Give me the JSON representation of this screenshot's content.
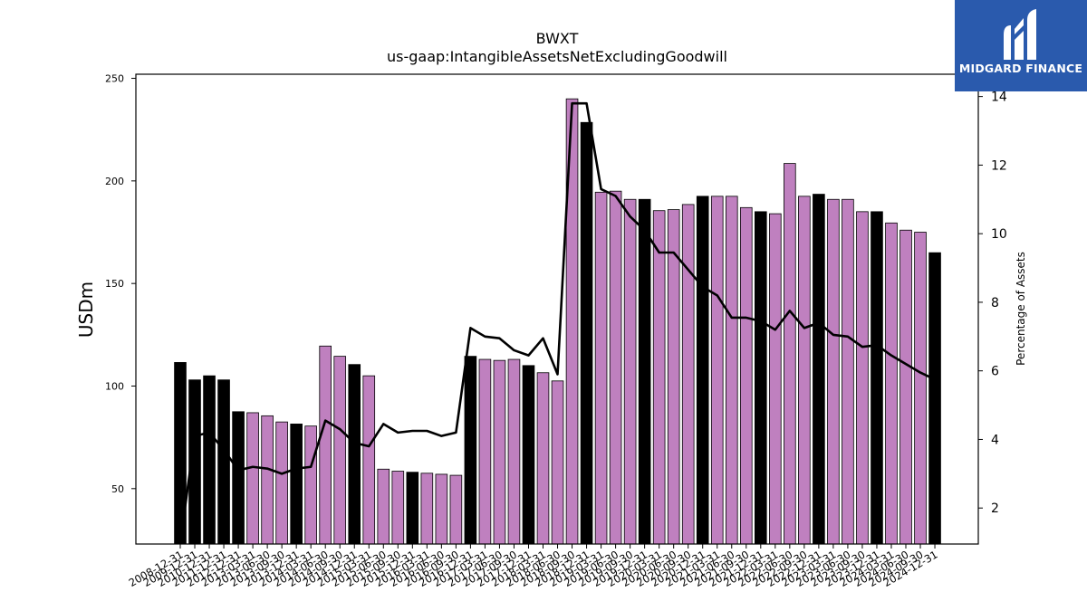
{
  "chart_data": {
    "type": "bar",
    "title": "BWXT",
    "subtitle": "us-gaap:IntangibleAssetsNetExcludingGoodwill",
    "ylabel": "USDm",
    "y2label": "Percentage of Assets",
    "ylim": [
      23,
      252
    ],
    "y2lim": [
      0.95,
      14.65
    ],
    "yticks": [
      50,
      100,
      150,
      200,
      250
    ],
    "y2ticks": [
      2,
      4,
      6,
      8,
      10,
      12,
      14
    ],
    "colors": {
      "annual": "#000000",
      "quarterly": "#bf80bf",
      "line": "#000000"
    },
    "categories": [
      "2008-12-31",
      "2009-12-31",
      "2010-12-31",
      "2011-12-31",
      "2012-12-31",
      "2013-03-31",
      "2013-06-30",
      "2013-09-30",
      "2013-12-31",
      "2014-03-31",
      "2014-06-30",
      "2014-09-30",
      "2014-12-31",
      "2015-03-31",
      "2015-06-30",
      "2015-09-30",
      "2015-12-31",
      "2016-03-31",
      "2016-06-30",
      "2016-09-30",
      "2016-12-31",
      "2017-03-31",
      "2017-06-30",
      "2017-09-30",
      "2017-12-31",
      "2018-03-31",
      "2018-06-30",
      "2018-09-30",
      "2018-12-31",
      "2019-03-31",
      "2019-06-30",
      "2019-09-30",
      "2019-12-31",
      "2020-03-31",
      "2020-06-30",
      "2020-09-30",
      "2020-12-31",
      "2021-03-31",
      "2021-06-30",
      "2021-09-30",
      "2021-12-31",
      "2022-03-31",
      "2022-06-30",
      "2022-09-30",
      "2022-12-31",
      "2023-03-31",
      "2023-06-30",
      "2023-09-30",
      "2023-12-31",
      "2024-03-31",
      "2024-06-30",
      "2024-09-30",
      "2024-12-31"
    ],
    "annual": [
      true,
      true,
      true,
      true,
      true,
      false,
      false,
      false,
      true,
      false,
      false,
      false,
      true,
      false,
      false,
      false,
      true,
      false,
      false,
      false,
      true,
      false,
      false,
      false,
      true,
      false,
      false,
      false,
      true,
      false,
      false,
      false,
      true,
      false,
      false,
      false,
      true,
      false,
      false,
      false,
      true,
      false,
      false,
      false,
      true,
      false,
      false,
      false,
      true,
      false,
      false,
      false,
      true
    ],
    "series": [
      {
        "name": "USDm",
        "type": "bar",
        "values": [
          111.5,
          103,
          105,
          103,
          87.5,
          87,
          85.5,
          82.5,
          81.5,
          80.5,
          119.5,
          114.5,
          110.5,
          105,
          59.5,
          58.5,
          58,
          57.5,
          57,
          56.5,
          114.5,
          113,
          112.5,
          113,
          110,
          106.5,
          102.5,
          240,
          228.5,
          194.5,
          195,
          191,
          191,
          185.5,
          186,
          188.5,
          192.5,
          192.5,
          192.5,
          187,
          185,
          184,
          208.5,
          192.5,
          193.5,
          191,
          191,
          185,
          185,
          179.5,
          176,
          175,
          165
        ]
      },
      {
        "name": "Percentage of Assets",
        "type": "line",
        "values": [
          1.0,
          4.1,
          4.2,
          3.7,
          3.1,
          3.2,
          3.15,
          3.0,
          3.15,
          3.2,
          4.55,
          4.3,
          3.9,
          3.8,
          4.45,
          4.2,
          4.25,
          4.25,
          4.1,
          4.2,
          7.25,
          7.0,
          6.95,
          6.6,
          6.45,
          6.95,
          5.9,
          13.8,
          13.8,
          11.3,
          11.1,
          10.5,
          10.1,
          9.45,
          9.45,
          8.95,
          8.45,
          8.2,
          7.55,
          7.55,
          7.45,
          7.2,
          7.75,
          7.25,
          7.4,
          7.05,
          7.0,
          6.7,
          6.75,
          6.45,
          6.2,
          5.95,
          5.75
        ]
      }
    ]
  },
  "logo": {
    "text": "MIDGARD FINANCE"
  }
}
